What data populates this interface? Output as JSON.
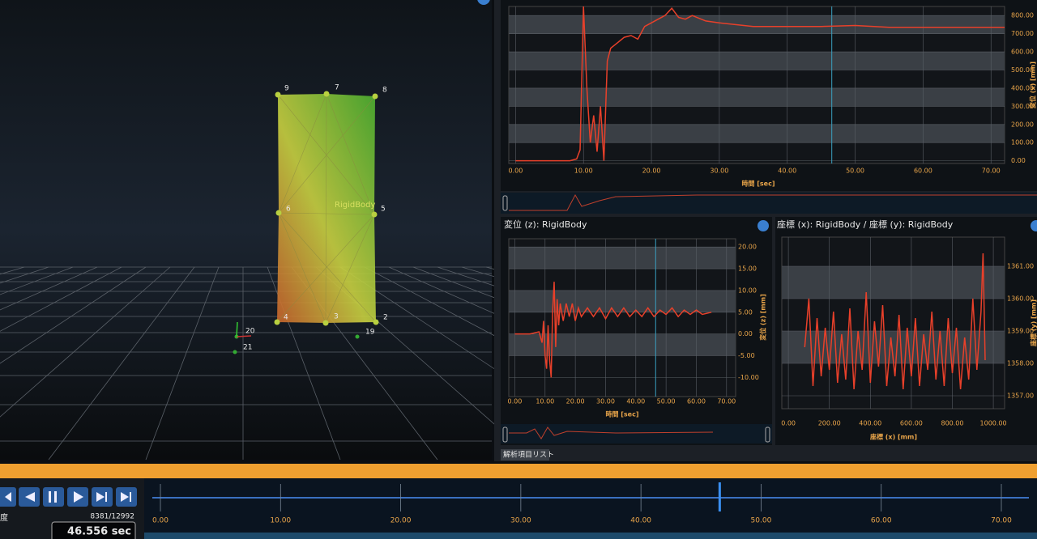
{
  "viewport": {
    "markers": [
      "9",
      "7",
      "8",
      "6",
      "5",
      "4",
      "3",
      "2",
      "20",
      "19",
      "21"
    ],
    "body_label": "RigidBody"
  },
  "chart_data": [
    {
      "type": "line",
      "x_label": "時間 [sec]",
      "y_label": "変位 (x) [mm]",
      "x": [
        0,
        8,
        9,
        9.5,
        10,
        10.5,
        11,
        11.5,
        12,
        12.5,
        13,
        13.5,
        14,
        15,
        16,
        17,
        18,
        19,
        20,
        21,
        22,
        23,
        24,
        25,
        26,
        28,
        30,
        35,
        40,
        45,
        50,
        55,
        60,
        65,
        70,
        72
      ],
      "series": [
        {
          "name": "RigidBody",
          "color": "#e8402a",
          "values": [
            0,
            0,
            10,
            60,
            850,
            400,
            100,
            250,
            50,
            300,
            0,
            550,
            620,
            650,
            680,
            690,
            670,
            740,
            760,
            780,
            800,
            840,
            790,
            780,
            800,
            770,
            760,
            740,
            740,
            740,
            745,
            735,
            735,
            735,
            735,
            735
          ]
        }
      ],
      "xlim": [
        -1,
        72
      ],
      "ylim": [
        -15,
        850
      ],
      "xticks": [
        {
          "value": 0,
          "label": "0.00"
        },
        {
          "value": 10,
          "label": "10.00"
        },
        {
          "value": 20,
          "label": "20.00"
        },
        {
          "value": 30,
          "label": "30.00"
        },
        {
          "value": 40,
          "label": "40.00"
        },
        {
          "value": 50,
          "label": "50.00"
        },
        {
          "value": 60,
          "label": "60.00"
        },
        {
          "value": 70,
          "label": "70.00"
        }
      ],
      "yticks": [
        {
          "value": 0,
          "label": "0.00"
        },
        {
          "value": 100,
          "label": "100.00"
        },
        {
          "value": 200,
          "label": "200.00"
        },
        {
          "value": 300,
          "label": "300.00"
        },
        {
          "value": 400,
          "label": "400.00"
        },
        {
          "value": 500,
          "label": "500.00"
        },
        {
          "value": 600,
          "label": "600.00"
        },
        {
          "value": 700,
          "label": "700.00"
        },
        {
          "value": 800,
          "label": "800.00"
        }
      ],
      "grid": true
    },
    {
      "type": "line",
      "title": "変位 (z):  RigidBody",
      "x_label": "時間 [sec]",
      "y_label": "変位 (z) [mm]",
      "x": [
        0,
        5,
        8,
        9,
        9.5,
        10,
        10.5,
        11,
        11.5,
        12,
        12.5,
        13,
        13.5,
        14,
        14.5,
        15,
        16,
        17,
        18,
        19,
        20,
        21,
        22,
        24,
        26,
        28,
        30,
        32,
        34,
        36,
        38,
        40,
        42,
        44,
        46,
        48,
        50,
        52,
        54,
        56,
        58,
        60,
        62,
        65
      ],
      "series": [
        {
          "name": "RigidBody",
          "color": "#e8402a",
          "values": [
            0,
            0,
            0.5,
            -2,
            3,
            -5,
            -8,
            2,
            -6,
            -10,
            5,
            12,
            -3,
            8,
            2,
            7,
            3,
            7,
            4,
            7,
            3,
            6,
            4,
            6,
            4,
            6,
            3.5,
            6,
            4,
            6,
            4,
            5.5,
            4,
            6,
            4,
            5.5,
            4.5,
            6,
            4,
            5.5,
            4.5,
            5.5,
            4.5,
            5
          ]
        }
      ],
      "xlim": [
        -2,
        73
      ],
      "ylim": [
        -14.4,
        21.9
      ],
      "xticks": [
        {
          "value": 0,
          "label": "0.00"
        },
        {
          "value": 10,
          "label": "10.00"
        },
        {
          "value": 20,
          "label": "20.00"
        },
        {
          "value": 30,
          "label": "30.00"
        },
        {
          "value": 40,
          "label": "40.00"
        },
        {
          "value": 50,
          "label": "50.00"
        },
        {
          "value": 60,
          "label": "60.00"
        },
        {
          "value": 70,
          "label": "70.00"
        }
      ],
      "yticks": [
        {
          "value": -10,
          "label": "-10.00"
        },
        {
          "value": -5,
          "label": "-5.00"
        },
        {
          "value": 0,
          "label": "0.00"
        },
        {
          "value": 5,
          "label": "5.00"
        },
        {
          "value": 10,
          "label": "10.00"
        },
        {
          "value": 15,
          "label": "15.00"
        },
        {
          "value": 20,
          "label": "20.00"
        }
      ],
      "grid": true
    },
    {
      "type": "line",
      "title": "座標 (x):  RigidBody / 座標 (y):  RigidBody",
      "x_label": "座標 (x) [mm]",
      "y_label": "座標 (y) [mm]",
      "x": [
        80,
        100,
        120,
        140,
        160,
        180,
        200,
        220,
        240,
        260,
        280,
        300,
        320,
        340,
        360,
        380,
        400,
        420,
        440,
        460,
        480,
        500,
        520,
        540,
        560,
        580,
        600,
        620,
        640,
        660,
        680,
        700,
        720,
        740,
        760,
        780,
        800,
        820,
        840,
        860,
        880,
        900,
        920,
        940,
        950,
        960
      ],
      "series": [
        {
          "name": "RigidBody",
          "color": "#e8402a",
          "values": [
            1358.5,
            1360.0,
            1357.3,
            1359.4,
            1357.6,
            1359.1,
            1357.8,
            1359.6,
            1357.4,
            1358.9,
            1357.5,
            1359.7,
            1357.2,
            1359.0,
            1357.8,
            1360.2,
            1357.4,
            1359.3,
            1357.9,
            1359.8,
            1357.3,
            1358.8,
            1357.6,
            1359.5,
            1357.2,
            1359.1,
            1357.6,
            1359.4,
            1357.3,
            1358.9,
            1357.8,
            1359.6,
            1357.5,
            1359.0,
            1357.3,
            1359.4,
            1357.7,
            1359.1,
            1357.2,
            1358.8,
            1357.5,
            1360.0,
            1357.8,
            1359.6,
            1361.4,
            1358.1
          ]
        }
      ],
      "xlim": [
        -32,
        1055
      ],
      "ylim": [
        1356.6,
        1361.9
      ],
      "xticks": [
        {
          "value": 0,
          "label": "0.00"
        },
        {
          "value": 200,
          "label": "200.00"
        },
        {
          "value": 400,
          "label": "400.00"
        },
        {
          "value": 600,
          "label": "600.00"
        },
        {
          "value": 800,
          "label": "800.00"
        },
        {
          "value": 1000,
          "label": "1000.00"
        }
      ],
      "yticks": [
        {
          "value": 1357,
          "label": "1357.00"
        },
        {
          "value": 1358,
          "label": "1358.00"
        },
        {
          "value": 1359,
          "label": "1359.00"
        },
        {
          "value": 1360,
          "label": "1360.00"
        },
        {
          "value": 1361,
          "label": "1361.00"
        }
      ],
      "grid": true
    }
  ],
  "tab": "解析項目リスト",
  "timeline": {
    "frame": "8381/12992",
    "speed_label": "度",
    "cursor": {
      "value": 46.556,
      "label": "46.556 sec"
    },
    "xlim": [
      0,
      70
    ],
    "xticks": [
      {
        "value": 0,
        "label": "0.00"
      },
      {
        "value": 10,
        "label": "10.00"
      },
      {
        "value": 20,
        "label": "20.00"
      },
      {
        "value": 30,
        "label": "30.00"
      },
      {
        "value": 40,
        "label": "40.00"
      },
      {
        "value": 50,
        "label": "50.00"
      },
      {
        "value": 60,
        "label": "60.00"
      },
      {
        "value": 70,
        "label": "70.00"
      }
    ]
  }
}
